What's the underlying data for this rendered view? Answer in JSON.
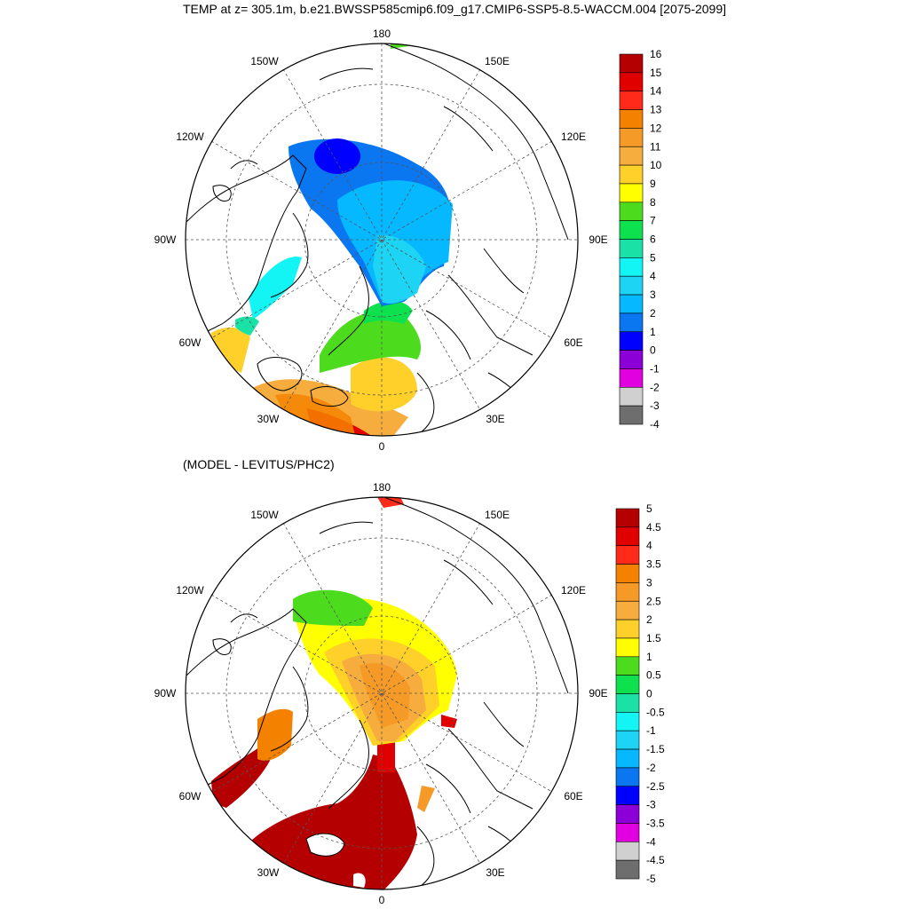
{
  "title": "TEMP at z= 305.1m, b.e21.BWSSP585cmip6.f09_g17.CMIP6-SSP5-8.5-WACCM.004 [2075-2099]",
  "bottom_subtitle": "(MODEL - LEVITUS/PHC2)",
  "longitude_labels": {
    "lon_180": "180",
    "lon_150W": "150W",
    "lon_150E": "150E",
    "lon_120W": "120W",
    "lon_120E": "120E",
    "lon_90W": "90W",
    "lon_90E": "90E",
    "lon_60W": "60W",
    "lon_60E": "60E",
    "lon_30W": "30W",
    "lon_30E": "30E",
    "lon_0": "0"
  },
  "top_colorbar": {
    "labels": [
      "16",
      "15",
      "14",
      "13",
      "12",
      "11",
      "10",
      "9",
      "8",
      "7",
      "6",
      "5",
      "4",
      "3",
      "2",
      "1",
      "0",
      "-1",
      "-2",
      "-3",
      "-4"
    ],
    "colors": [
      "#b40000",
      "#e00000",
      "#ff2a1a",
      "#f48200",
      "#f59a27",
      "#f7ad3e",
      "#ffd02a",
      "#ffff00",
      "#4ddb1e",
      "#0ee14e",
      "#1ae2a6",
      "#13f5f5",
      "#1dd4f4",
      "#05b8ff",
      "#0a76f0",
      "#0000ff",
      "#8c00d8",
      "#e000e0",
      "#d0d0d0",
      "#6e6e6e"
    ]
  },
  "bottom_colorbar": {
    "labels": [
      "5",
      "4.5",
      "4",
      "3.5",
      "3",
      "2.5",
      "2",
      "1.5",
      "1",
      "0.5",
      "0",
      "-0.5",
      "-1",
      "-1.5",
      "-2",
      "-2.5",
      "-3",
      "-3.5",
      "-4",
      "-4.5",
      "-5"
    ],
    "colors": [
      "#b40000",
      "#e00000",
      "#ff2a1a",
      "#f48200",
      "#f59a27",
      "#f7ad3e",
      "#ffd02a",
      "#ffff00",
      "#4ddb1e",
      "#0ee14e",
      "#1ae2a6",
      "#13f5f5",
      "#1dd4f4",
      "#05b8ff",
      "#0a76f0",
      "#0000ff",
      "#8c00d8",
      "#e000e0",
      "#d0d0d0",
      "#6e6e6e"
    ]
  },
  "map_style": {
    "projection": "north polar stereographic",
    "graticule": "dashed",
    "coastlines": "black outline"
  }
}
